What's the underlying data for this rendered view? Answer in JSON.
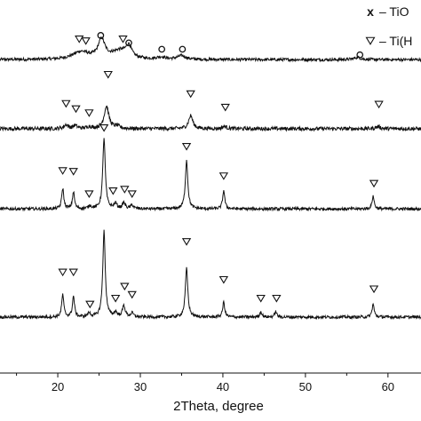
{
  "chart_data": {
    "type": "line",
    "title": "",
    "xlabel": "2Theta, degree",
    "ylabel": "",
    "xlim": [
      13,
      64
    ],
    "x_ticks": [
      20,
      30,
      40,
      50,
      60
    ],
    "tick_labels": [
      "20",
      "30",
      "40",
      "50",
      "60"
    ],
    "grid": false,
    "legend_position": "top-right",
    "legend": [
      {
        "symbol": "x",
        "label": "– TiO"
      },
      {
        "symbol": "▽",
        "label": "– Ti(H"
      }
    ],
    "series": [
      {
        "baseline_level": 0.84,
        "noise": 0.004,
        "peaks": [
          [
            22.8,
            0.02,
            1.2
          ],
          [
            25.3,
            0.05,
            0.5
          ],
          [
            27.5,
            0.022,
            1.2
          ],
          [
            28.6,
            0.03,
            0.4
          ],
          [
            32.5,
            0.006,
            0.6
          ],
          [
            35.0,
            0.01,
            0.6
          ],
          [
            56.3,
            0.006,
            0.5
          ]
        ],
        "markers": [
          {
            "symbol": "▽",
            "x": 22.6,
            "y": 0.895
          },
          {
            "symbol": "▽",
            "x": 23.4,
            "y": 0.89
          },
          {
            "symbol": "o",
            "x": 25.2,
            "y": 0.905
          },
          {
            "symbol": "▽",
            "x": 27.9,
            "y": 0.895
          },
          {
            "symbol": "o",
            "x": 28.6,
            "y": 0.885
          },
          {
            "symbol": "o",
            "x": 32.6,
            "y": 0.868
          },
          {
            "symbol": "o",
            "x": 35.1,
            "y": 0.868
          },
          {
            "symbol": "o",
            "x": 56.6,
            "y": 0.853
          }
        ]
      },
      {
        "baseline_level": 0.655,
        "noise": 0.005,
        "peaks": [
          [
            21.0,
            0.01,
            0.3
          ],
          [
            22.1,
            0.008,
            0.3
          ],
          [
            23.8,
            0.005,
            0.3
          ],
          [
            25.9,
            0.06,
            0.35
          ],
          [
            27.2,
            0.006,
            0.3
          ],
          [
            36.1,
            0.035,
            0.3
          ],
          [
            40.2,
            0.006,
            0.3
          ],
          [
            58.8,
            0.006,
            0.3
          ]
        ],
        "markers": [
          {
            "symbol": "▽",
            "x": 21.0,
            "y": 0.722
          },
          {
            "symbol": "▽",
            "x": 22.2,
            "y": 0.708
          },
          {
            "symbol": "▽",
            "x": 23.8,
            "y": 0.697
          },
          {
            "symbol": "▽",
            "x": 26.1,
            "y": 0.8
          },
          {
            "symbol": "▽",
            "x": 36.1,
            "y": 0.748
          },
          {
            "symbol": "▽",
            "x": 40.3,
            "y": 0.712
          },
          {
            "symbol": "▽",
            "x": 58.9,
            "y": 0.72
          }
        ]
      },
      {
        "baseline_level": 0.44,
        "noise": 0.004,
        "peaks": [
          [
            20.6,
            0.055,
            0.15
          ],
          [
            21.9,
            0.045,
            0.15
          ],
          [
            23.9,
            0.008,
            0.2
          ],
          [
            25.6,
            0.19,
            0.18
          ],
          [
            27.0,
            0.014,
            0.2
          ],
          [
            28.0,
            0.016,
            0.2
          ],
          [
            29.0,
            0.01,
            0.2
          ],
          [
            35.6,
            0.13,
            0.18
          ],
          [
            40.1,
            0.05,
            0.15
          ],
          [
            58.2,
            0.035,
            0.15
          ]
        ],
        "markers": [
          {
            "symbol": "▽",
            "x": 20.6,
            "y": 0.542
          },
          {
            "symbol": "▽",
            "x": 21.9,
            "y": 0.54
          },
          {
            "symbol": "▽",
            "x": 23.8,
            "y": 0.48
          },
          {
            "symbol": "▽",
            "x": 25.6,
            "y": 0.657
          },
          {
            "symbol": "▽",
            "x": 26.7,
            "y": 0.488
          },
          {
            "symbol": "▽",
            "x": 28.1,
            "y": 0.492
          },
          {
            "symbol": "▽",
            "x": 29.0,
            "y": 0.48
          },
          {
            "symbol": "▽",
            "x": 35.6,
            "y": 0.607
          },
          {
            "symbol": "▽",
            "x": 40.1,
            "y": 0.528
          },
          {
            "symbol": "▽",
            "x": 58.3,
            "y": 0.508
          }
        ]
      },
      {
        "baseline_level": 0.15,
        "noise": 0.004,
        "peaks": [
          [
            20.6,
            0.06,
            0.15
          ],
          [
            21.9,
            0.055,
            0.15
          ],
          [
            23.8,
            0.01,
            0.2
          ],
          [
            25.6,
            0.23,
            0.18
          ],
          [
            27.0,
            0.012,
            0.2
          ],
          [
            28.0,
            0.03,
            0.2
          ],
          [
            29.0,
            0.01,
            0.2
          ],
          [
            35.6,
            0.13,
            0.18
          ],
          [
            40.1,
            0.04,
            0.15
          ],
          [
            44.6,
            0.015,
            0.15
          ],
          [
            46.4,
            0.015,
            0.15
          ],
          [
            58.2,
            0.035,
            0.15
          ]
        ],
        "markers": [
          {
            "symbol": "▽",
            "x": 20.6,
            "y": 0.27
          },
          {
            "symbol": "▽",
            "x": 21.9,
            "y": 0.27
          },
          {
            "symbol": "▽",
            "x": 23.9,
            "y": 0.184
          },
          {
            "symbol": "▽",
            "x": 27.0,
            "y": 0.2
          },
          {
            "symbol": "▽",
            "x": 28.1,
            "y": 0.232
          },
          {
            "symbol": "▽",
            "x": 29.0,
            "y": 0.21
          },
          {
            "symbol": "▽",
            "x": 35.6,
            "y": 0.352
          },
          {
            "symbol": "▽",
            "x": 40.1,
            "y": 0.25
          },
          {
            "symbol": "▽",
            "x": 44.6,
            "y": 0.2
          },
          {
            "symbol": "▽",
            "x": 46.5,
            "y": 0.2
          },
          {
            "symbol": "▽",
            "x": 58.3,
            "y": 0.225
          }
        ]
      }
    ]
  }
}
